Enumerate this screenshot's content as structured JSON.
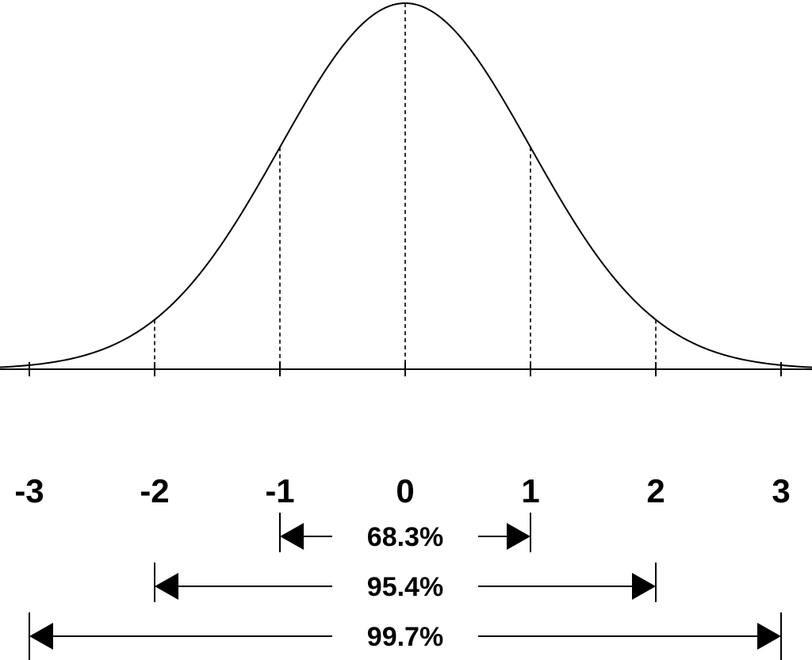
{
  "diagram": {
    "x_ticks": [
      {
        "value": -3,
        "label": "-3"
      },
      {
        "value": -2,
        "label": "-2"
      },
      {
        "value": -1,
        "label": "-1"
      },
      {
        "value": 0,
        "label": "0"
      },
      {
        "value": 1,
        "label": "1"
      },
      {
        "value": 2,
        "label": "2"
      },
      {
        "value": 3,
        "label": "3"
      }
    ],
    "ranges": [
      {
        "from": -1,
        "to": 1,
        "label": "68.3%"
      },
      {
        "from": -2,
        "to": 2,
        "label": "95.4%"
      },
      {
        "from": -3,
        "to": 3,
        "label": "99.7%"
      }
    ],
    "colors": {
      "line": "#000000",
      "background": "#ffffff"
    }
  }
}
